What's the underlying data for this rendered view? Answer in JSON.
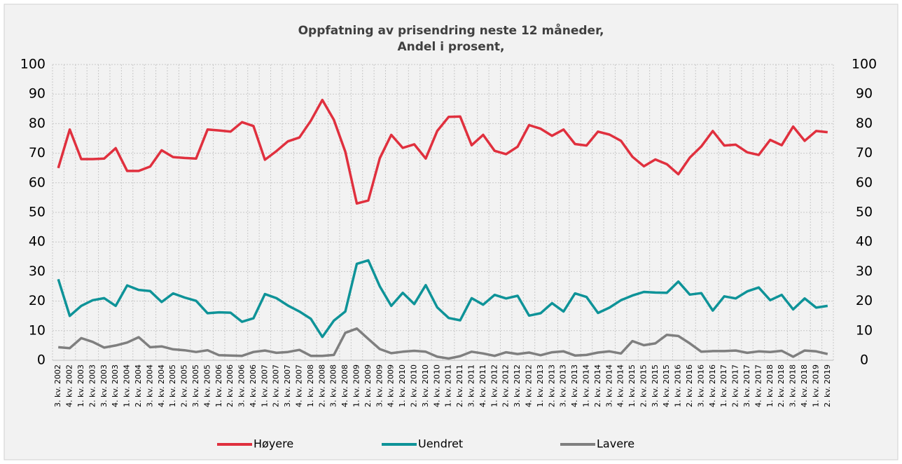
{
  "chart_data": {
    "type": "line",
    "title": "Oppfatning av prisendring neste 12 måneder,",
    "subtitle": "Andel i prosent,",
    "categories": [
      "3. kv. 2002",
      "4. kv. 2002",
      "1. kv. 2003",
      "2. kv. 2003",
      "3. kv. 2003",
      "4. kv. 2003",
      "1. kv. 2004",
      "2. kv. 2004",
      "3. kv. 2004",
      "4. kv. 2004",
      "1. kv. 2005",
      "2. kv. 2005",
      "3. kv. 2005",
      "4. kv. 2005",
      "1. kv. 2006",
      "2. kv. 2006",
      "3. kv. 2006",
      "4. kv. 2006",
      "1. kv. 2007",
      "2. kv. 2007",
      "3. kv. 2007",
      "4. kv. 2007",
      "1. kv. 2008",
      "2. kv. 2008",
      "3. kv. 2008",
      "4. kv. 2008",
      "1. kv. 2009",
      "2. kv. 2009",
      "3. kv. 2009",
      "4. kv. 2009",
      "1. kv. 2010",
      "2. kv. 2010",
      "3. kv. 2010",
      "4. kv. 2010",
      "1. kv. 2011",
      "2. kv. 2011",
      "3. kv. 2011",
      "4. kv. 2011",
      "1. kv. 2012",
      "2. kv. 2012",
      "3. kv. 2012",
      "4. kv. 2012",
      "1. kv. 2013",
      "2. kv. 2013",
      "3. kv. 2013",
      "4. kv. 2013",
      "1. kv. 2014",
      "2. kv. 2014",
      "3. kv. 2014",
      "4. kv. 2014",
      "1. kv. 2015",
      "2. kv. 2015",
      "3. kv. 2015",
      "4. kv. 2015",
      "1. kv. 2016",
      "2. kv. 2016",
      "3. kv. 2016",
      "4. kv. 2016",
      "1. kv. 2017",
      "2. kv. 2017",
      "3. kv. 2017",
      "4. kv. 2017",
      "1. kv. 2018",
      "2. kv. 2018",
      "3. kv. 2018",
      "4. kv. 2018",
      "1. kv. 2019",
      "2. kv. 2019"
    ],
    "series": [
      {
        "name": "Høyere",
        "color": "#e0303e",
        "values": [
          65,
          78,
          68,
          68,
          68.2,
          71.7,
          64,
          64,
          65.5,
          71,
          68.7,
          68.4,
          68.2,
          78,
          77.7,
          77.3,
          80.5,
          79.2,
          67.8,
          70.7,
          74,
          75.3,
          81,
          88,
          81.3,
          70.5,
          53,
          54,
          68.3,
          76.2,
          71.8,
          73,
          68.2,
          77.5,
          82.3,
          82.4,
          72.7,
          76.2,
          70.8,
          69.7,
          72.2,
          79.5,
          78.3,
          75.9,
          78,
          73.1,
          72.6,
          77.3,
          76.3,
          74.2,
          68.8,
          65.6,
          67.9,
          66.3,
          62.9,
          68.5,
          72.3,
          77.5,
          72.6,
          72.9,
          70.3,
          69.4,
          74.5,
          72.7,
          79,
          74.2,
          77.5,
          77.1
        ]
      },
      {
        "name": "Uendret",
        "color": "#0e9398",
        "values": [
          27.4,
          15,
          18.4,
          20.3,
          21,
          18.4,
          25.3,
          23.8,
          23.4,
          19.7,
          22.6,
          21.2,
          20.1,
          15.9,
          16.2,
          16.1,
          13,
          14.2,
          22.4,
          21,
          18.5,
          16.5,
          14,
          7.9,
          13.4,
          16.5,
          32.6,
          33.8,
          25,
          18.4,
          22.8,
          19,
          25.4,
          17.9,
          14.3,
          13.5,
          21,
          18.8,
          22.1,
          20.9,
          21.8,
          15.1,
          15.9,
          19.3,
          16.5,
          22.6,
          21.4,
          16,
          17.8,
          20.3,
          21.9,
          23.1,
          22.9,
          22.8,
          26.6,
          22.2,
          22.7,
          16.8,
          21.6,
          20.9,
          23.3,
          24.6,
          20.3,
          22.1,
          17.2,
          20.9,
          17.8,
          18.4
        ]
      },
      {
        "name": "Lavere",
        "color": "#7f7f7f",
        "values": [
          4.4,
          4.1,
          7.5,
          6.2,
          4.3,
          5,
          6,
          7.8,
          4.4,
          4.7,
          3.7,
          3.4,
          2.8,
          3.4,
          1.7,
          1.6,
          1.5,
          2.8,
          3.3,
          2.5,
          2.8,
          3.5,
          1.5,
          1.5,
          1.8,
          9.3,
          10.7,
          7.2,
          3.8,
          2.4,
          2.9,
          3.2,
          2.9,
          1.2,
          0.6,
          1.4,
          2.9,
          2.3,
          1.5,
          2.7,
          2.1,
          2.6,
          1.7,
          2.7,
          3,
          1.6,
          1.8,
          2.6,
          3,
          2.3,
          6.5,
          5.1,
          5.7,
          8.6,
          8.2,
          5.7,
          2.9,
          3.1,
          3.1,
          3.3,
          2.5,
          3,
          2.8,
          3.2,
          1.2,
          3.3,
          3,
          2.1
        ]
      }
    ],
    "ylim": [
      0,
      100
    ],
    "yticks": [
      0,
      10,
      20,
      30,
      40,
      50,
      60,
      70,
      80,
      90,
      100
    ],
    "y2lim": [
      0,
      100
    ],
    "y2ticks": [
      0,
      10,
      20,
      30,
      40,
      50,
      60,
      70,
      80,
      90,
      100
    ],
    "grid": true,
    "legend": "bottom"
  }
}
